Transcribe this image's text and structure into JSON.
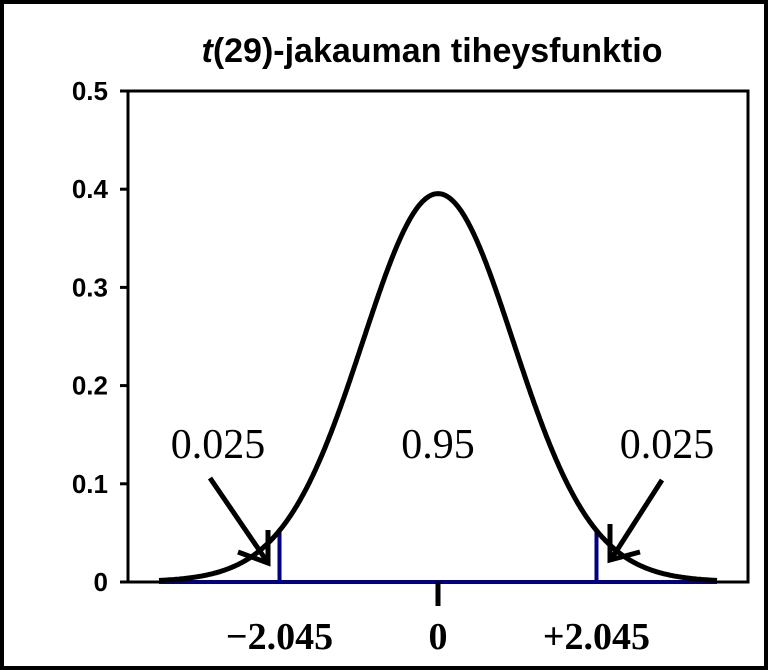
{
  "chart_data": {
    "type": "line",
    "title_italic": "t",
    "title_rest": "(29)-jakauman tiheysfunktio",
    "xlabel": "",
    "ylabel": "",
    "ylim": [
      0,
      0.5
    ],
    "xlim": [
      -4,
      4
    ],
    "yticks": [
      "0",
      "0.1",
      "0.2",
      "0.3",
      "0.4",
      "0.5"
    ],
    "ytick_values": [
      0,
      0.1,
      0.2,
      0.3,
      0.4,
      0.5
    ],
    "degrees_of_freedom": 29,
    "grid": false,
    "critical_values": [
      -2.045,
      2.045
    ],
    "x_labels": [
      {
        "value": -2.045,
        "text": "−2.045"
      },
      {
        "value": 0,
        "text": "0"
      },
      {
        "value": 2.045,
        "text": "+2.045"
      }
    ],
    "annotations": {
      "left_tail": "0.025",
      "center": "0.95",
      "right_tail": "0.025"
    },
    "colors": {
      "curve": "#000000",
      "critical_lines": "#000080",
      "baseline": "#000080"
    }
  }
}
